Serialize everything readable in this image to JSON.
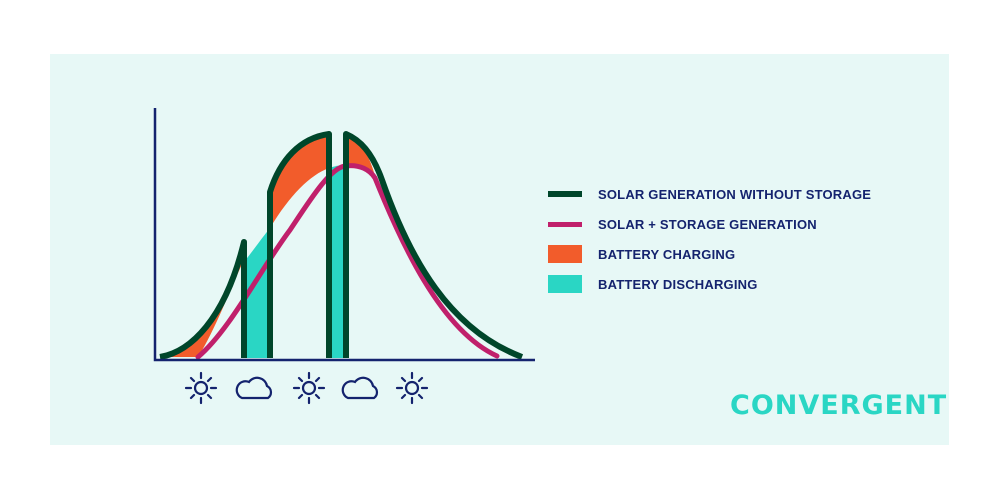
{
  "legend": [
    {
      "label": "SOLAR GENERATION WITHOUT STORAGE",
      "color": "#00462a",
      "kind": "line"
    },
    {
      "label": "SOLAR + STORAGE GENERATION",
      "color": "#c0206b",
      "kind": "line"
    },
    {
      "label": "BATTERY CHARGING",
      "color": "#f25c2b",
      "kind": "box"
    },
    {
      "label": "BATTERY DISCHARGING",
      "color": "#2ad6c4",
      "kind": "box"
    }
  ],
  "weather_sequence": [
    "sun-icon",
    "cloud-icon",
    "sun-icon",
    "cloud-icon",
    "sun-icon"
  ],
  "logo": "CONVERGENT",
  "colors": {
    "axis": "#14236e",
    "background": "#e7f8f6"
  }
}
